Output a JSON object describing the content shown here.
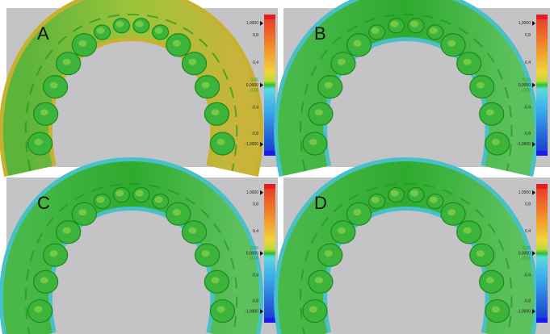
{
  "panels": [
    {
      "label": "A",
      "scale": [
        "1,0000",
        "0,8",
        "0,4",
        "0,05",
        "0,0000",
        "-0,05",
        "-0,4",
        "-0,8",
        "-1,0000"
      ]
    },
    {
      "label": "B",
      "scale": [
        "1,0000",
        "0,8",
        "0,4",
        "0,05",
        "0,0000",
        "-0,05",
        "-0,4",
        "-0,8",
        "-1,0000"
      ]
    },
    {
      "label": "C",
      "scale": [
        "1,0000",
        "0,8",
        "0,4",
        "0,05",
        "0,0000",
        "-0,05",
        "-0,4",
        "-0,8",
        "-1,0000"
      ]
    },
    {
      "label": "D",
      "scale": [
        "1,0000",
        "0,8",
        "0,4",
        "0,05",
        "0,0000",
        "-0,05",
        "-0,4",
        "-0,8",
        "-1,0000"
      ]
    }
  ]
}
